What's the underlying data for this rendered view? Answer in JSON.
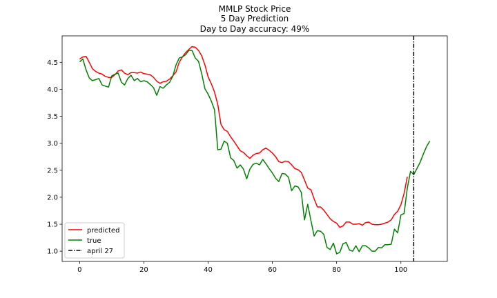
{
  "chart_data": {
    "type": "line",
    "title_lines": [
      "MMLP Stock Price",
      "5 Day Prediction",
      "Day to Day accuracy: 49%"
    ],
    "xlabel": "",
    "ylabel": "",
    "xlim": [
      -5.45,
      114.45
    ],
    "ylim": [
      0.81,
      4.99
    ],
    "xticks": [
      0,
      20,
      40,
      60,
      80,
      100
    ],
    "yticks": [
      1.0,
      1.5,
      2.0,
      2.5,
      3.0,
      3.5,
      4.0,
      4.5
    ],
    "ytick_labels": [
      "1.0",
      "1.5",
      "2.0",
      "2.5",
      "3.0",
      "3.5",
      "4.0",
      "4.5"
    ],
    "grid": false,
    "legend_position": "lower-left",
    "series": [
      {
        "name": "predicted",
        "color": "#ff0000",
        "x_start": 0,
        "values": [
          4.56,
          4.6,
          4.61,
          4.5,
          4.38,
          4.33,
          4.3,
          4.28,
          4.24,
          4.22,
          4.22,
          4.27,
          4.34,
          4.36,
          4.3,
          4.27,
          4.31,
          4.31,
          4.3,
          4.32,
          4.29,
          4.28,
          4.27,
          4.22,
          4.15,
          4.11,
          4.14,
          4.15,
          4.19,
          4.25,
          4.32,
          4.5,
          4.6,
          4.68,
          4.74,
          4.79,
          4.78,
          4.72,
          4.62,
          4.45,
          4.23,
          4.1,
          3.95,
          3.72,
          3.35,
          3.25,
          3.22,
          3.12,
          3.04,
          2.95,
          2.86,
          2.83,
          2.77,
          2.72,
          2.78,
          2.81,
          2.82,
          2.88,
          2.91,
          2.87,
          2.82,
          2.75,
          2.66,
          2.64,
          2.67,
          2.66,
          2.6,
          2.53,
          2.51,
          2.46,
          2.32,
          2.17,
          2.14,
          1.97,
          1.82,
          1.82,
          1.76,
          1.68,
          1.6,
          1.55,
          1.52,
          1.44,
          1.47,
          1.54,
          1.54,
          1.5,
          1.5,
          1.51,
          1.48,
          1.53,
          1.54,
          1.5,
          1.49,
          1.49,
          1.5,
          1.52,
          1.54,
          1.58,
          1.68,
          1.74,
          1.86,
          2.07,
          2.38
        ]
      },
      {
        "name": "true",
        "color": "#008000",
        "x_start": 0,
        "values": [
          4.51,
          4.56,
          4.36,
          4.21,
          4.16,
          4.18,
          4.2,
          4.08,
          4.06,
          4.04,
          4.25,
          4.28,
          4.3,
          4.13,
          4.08,
          4.2,
          4.26,
          4.16,
          4.2,
          4.14,
          4.16,
          4.14,
          4.09,
          4.03,
          3.89,
          4.05,
          4.02,
          4.08,
          4.13,
          4.24,
          4.45,
          4.58,
          4.6,
          4.64,
          4.72,
          4.72,
          4.58,
          4.52,
          4.29,
          4.01,
          3.91,
          3.78,
          3.62,
          2.88,
          2.89,
          3.04,
          3.0,
          2.73,
          2.68,
          2.54,
          2.6,
          2.52,
          2.34,
          2.52,
          2.61,
          2.63,
          2.6,
          2.7,
          2.62,
          2.53,
          2.45,
          2.35,
          2.29,
          2.44,
          2.43,
          2.37,
          2.12,
          2.21,
          2.19,
          2.09,
          1.58,
          1.87,
          1.57,
          1.28,
          1.38,
          1.37,
          1.31,
          1.07,
          1.03,
          1.15,
          0.95,
          0.98,
          1.14,
          1.16,
          1.02,
          1.0,
          1.1,
          0.99,
          1.1,
          1.1,
          1.06,
          1.0,
          1.0,
          1.07,
          1.06,
          1.12,
          1.12,
          1.13,
          1.41,
          1.34,
          1.67,
          1.7,
          2.17,
          2.48,
          2.42,
          2.53,
          2.65,
          2.8,
          2.94,
          3.04
        ]
      }
    ],
    "vline": {
      "name": "april 27",
      "x": 104,
      "color": "#000000",
      "style": "dashdot"
    }
  }
}
